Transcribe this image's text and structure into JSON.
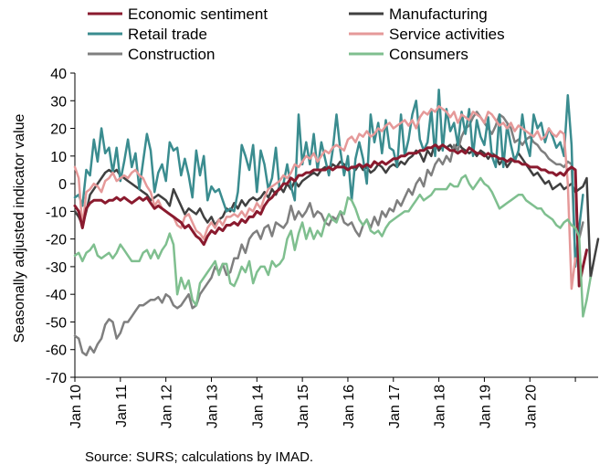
{
  "chart_data": {
    "type": "line",
    "ylabel": "Seasonally adjusted indicator value",
    "ylim": [
      -70,
      40
    ],
    "yticks": [
      40,
      30,
      20,
      10,
      0,
      -10,
      -20,
      -30,
      -40,
      -50,
      -60,
      -70
    ],
    "xticks": [
      "Jan 10",
      "Jan 11",
      "Jan 12",
      "Jan 13",
      "Jan 14",
      "Jan 15",
      "Jan 16",
      "Jan 17",
      "Jan 18",
      "Jan 19",
      "Jan 20"
    ],
    "x_start": "2010-01",
    "source": "Source: SURS; calculations by IMAD.",
    "grid": false,
    "legend": "top",
    "series": [
      {
        "name": "Manufacturing",
        "color": "#404040",
        "width": 2.5,
        "values": [
          -10,
          -12,
          -15,
          -10,
          -4,
          -2,
          0,
          2,
          4,
          5,
          4,
          5,
          3,
          2,
          1,
          0,
          -1,
          -2,
          -3,
          -4,
          -6,
          -5,
          -4,
          -5,
          -6,
          -8,
          -2,
          -5,
          -8,
          -11,
          -9,
          -10,
          -11,
          -9,
          -12,
          -14,
          -12,
          -15,
          -13,
          -12,
          -9,
          -10,
          -7,
          -9,
          -6,
          -8,
          -6,
          -5,
          -6,
          -5,
          -3,
          -5,
          -2,
          -4,
          -1,
          -3,
          0,
          -2,
          1,
          -1,
          1,
          2,
          3,
          4,
          3,
          5,
          6,
          5,
          7,
          6,
          8,
          7,
          5,
          6,
          5,
          7,
          5,
          6,
          4,
          5,
          7,
          6,
          4,
          6,
          7,
          6,
          8,
          7,
          9,
          10,
          12,
          11,
          8,
          12,
          10,
          15,
          12,
          14,
          13,
          14,
          12,
          15,
          13,
          12,
          11,
          12,
          10,
          12,
          11,
          9,
          11,
          10,
          7,
          9,
          6,
          8,
          9,
          11,
          9,
          7,
          5,
          3,
          4,
          2,
          0,
          1,
          -2,
          -1,
          0,
          -2,
          -1,
          0,
          -3,
          -2,
          -1,
          2,
          -34,
          -27,
          -20
        ]
      },
      {
        "name": "Construction",
        "color": "#7f7f7f",
        "width": 2.5,
        "values": [
          -55,
          -56,
          -61,
          -62,
          -59,
          -61,
          -58,
          -56,
          -51,
          -49,
          -50,
          -56,
          -54,
          -50,
          -50,
          -48,
          -46,
          -44,
          -44,
          -43,
          -42,
          -42,
          -41,
          -43,
          -40,
          -41,
          -44,
          -45,
          -44,
          -42,
          -40,
          -45,
          -44,
          -40,
          -38,
          -36,
          -34,
          -30,
          -32,
          -29,
          -33,
          -32,
          -27,
          -27,
          -22,
          -25,
          -20,
          -18,
          -17,
          -20,
          -16,
          -15,
          -19,
          -14,
          -15,
          -16,
          -14,
          -8,
          -13,
          -10,
          -12,
          -10,
          -7,
          -12,
          -10,
          -11,
          -14,
          -15,
          -12,
          -13,
          -10,
          -14,
          -15,
          -14,
          -17,
          -19,
          -15,
          -13,
          -16,
          -12,
          -15,
          -10,
          -12,
          -9,
          -10,
          -6,
          -8,
          -5,
          -2,
          -4,
          0,
          2,
          -1,
          5,
          3,
          7,
          9,
          7,
          10,
          8,
          14,
          12,
          17,
          20,
          21,
          24,
          26,
          24,
          22,
          20,
          18,
          21,
          25,
          24,
          22,
          20,
          15,
          16,
          14,
          16,
          17,
          15,
          14,
          12,
          11,
          9,
          8,
          7,
          7,
          6,
          8,
          7,
          -28,
          -20,
          -14
        ]
      },
      {
        "name": "Retail trade",
        "color": "#3a8c8f",
        "width": 2.5,
        "values": [
          -5,
          -4,
          -8,
          5,
          3,
          16,
          8,
          20,
          11,
          13,
          4,
          13,
          1,
          8,
          16,
          6,
          11,
          -2,
          8,
          18,
          12,
          -3,
          4,
          7,
          1,
          15,
          12,
          13,
          3,
          9,
          3,
          -5,
          12,
          3,
          10,
          -6,
          -1,
          -3,
          -2,
          -6,
          -10,
          -9,
          -10,
          -3,
          14,
          10,
          5,
          14,
          -3,
          12,
          7,
          -2,
          2,
          13,
          -2,
          0,
          7,
          -1,
          -6,
          25,
          7,
          15,
          7,
          18,
          5,
          15,
          9,
          3,
          12,
          25,
          12,
          3,
          10,
          -6,
          9,
          15,
          9,
          0,
          25,
          15,
          22,
          11,
          23,
          13,
          12,
          6,
          25,
          10,
          16,
          25,
          30,
          16,
          12,
          15,
          27,
          10,
          34,
          12,
          27,
          19,
          22,
          14,
          26,
          18,
          27,
          10,
          23,
          17,
          14,
          24,
          10,
          6,
          25,
          6,
          21,
          14,
          8,
          12,
          25,
          15,
          10,
          25,
          20,
          22,
          15,
          20,
          17,
          13,
          15,
          10,
          32,
          14,
          -30,
          -16,
          -4
        ]
      },
      {
        "name": "Service activities",
        "color": "#e59999",
        "width": 2.5,
        "values": [
          6,
          2,
          -16,
          -3,
          -2,
          0,
          -1,
          -3,
          1,
          2,
          4,
          1,
          2,
          3,
          2,
          4,
          5,
          3,
          2,
          -1,
          -3,
          -8,
          -6,
          -9,
          -10,
          -11,
          -12,
          -15,
          -16,
          -12,
          -11,
          -14,
          -17,
          -18,
          -20,
          -16,
          -14,
          -16,
          -13,
          -15,
          -12,
          -12,
          -11,
          -12,
          -10,
          -12,
          -9,
          -10,
          -7,
          -9,
          -5,
          -2,
          -1,
          0,
          1,
          3,
          2,
          4,
          7,
          6,
          8,
          10,
          9,
          11,
          8,
          10,
          12,
          11,
          13,
          14,
          13,
          12,
          16,
          17,
          15,
          18,
          17,
          19,
          17,
          18,
          20,
          19,
          21,
          22,
          20,
          21,
          22,
          23,
          21,
          23,
          20,
          24,
          26,
          25,
          27,
          26,
          28,
          27,
          26,
          24,
          26,
          22,
          25,
          24,
          23,
          26,
          25,
          24,
          22,
          26,
          25,
          23,
          21,
          22,
          20,
          22,
          19,
          21,
          20,
          19,
          18,
          17,
          19,
          16,
          17,
          20,
          18,
          17,
          19,
          18,
          0,
          -38,
          -27
        ]
      },
      {
        "name": "Economic sentiment",
        "color": "#8a1a2e",
        "width": 3,
        "values": [
          -8,
          -10,
          -16,
          -9,
          -7,
          -6,
          -6,
          -6,
          -7,
          -6,
          -6,
          -5,
          -6,
          -5,
          -6,
          -7,
          -6,
          -5,
          -6,
          -5,
          -7,
          -9,
          -8,
          -9,
          -10,
          -11,
          -12,
          -13,
          -14,
          -16,
          -15,
          -17,
          -19,
          -20,
          -22,
          -19,
          -17,
          -18,
          -16,
          -17,
          -15,
          -15,
          -14,
          -15,
          -13,
          -14,
          -12,
          -12,
          -10,
          -11,
          -8,
          -6,
          -5,
          -3,
          -2,
          0,
          0,
          2,
          1,
          3,
          3,
          4,
          4,
          5,
          5,
          5,
          5,
          6,
          5,
          6,
          6,
          6,
          5,
          6,
          6,
          7,
          6,
          7,
          6,
          8,
          7,
          8,
          7,
          8,
          9,
          9,
          10,
          10,
          11,
          11,
          11,
          12,
          12,
          13,
          13,
          14,
          13,
          14,
          13,
          12,
          12,
          11,
          12,
          11,
          13,
          12,
          11,
          11,
          10,
          11,
          10,
          10,
          9,
          9,
          8,
          9,
          8,
          8,
          7,
          7,
          6,
          6,
          6,
          5,
          5,
          4,
          4,
          3,
          4,
          3,
          5,
          6,
          5,
          -37,
          -30,
          -24
        ]
      },
      {
        "name": "Consumers",
        "color": "#7fbf8f",
        "width": 2.5,
        "values": [
          -26,
          -25,
          -28,
          -25,
          -24,
          -22,
          -26,
          -27,
          -26,
          -25,
          -27,
          -25,
          -22,
          -24,
          -26,
          -28,
          -28,
          -28,
          -25,
          -24,
          -27,
          -24,
          -27,
          -24,
          -22,
          -18,
          -22,
          -40,
          -34,
          -38,
          -35,
          -42,
          -44,
          -36,
          -34,
          -32,
          -30,
          -28,
          -33,
          -29,
          -29,
          -36,
          -37,
          -34,
          -30,
          -32,
          -28,
          -36,
          -32,
          -30,
          -30,
          -33,
          -28,
          -30,
          -29,
          -27,
          -20,
          -17,
          -24,
          -18,
          -14,
          -20,
          -16,
          -20,
          -17,
          -19,
          -14,
          -11,
          -13,
          -14,
          -10,
          -11,
          -5,
          -6,
          -9,
          -13,
          -15,
          -13,
          -17,
          -18,
          -17,
          -19,
          -16,
          -14,
          -13,
          -12,
          -11,
          -10,
          -10,
          -8,
          -6,
          -4,
          -6,
          -5,
          -4,
          -2,
          -2,
          -2,
          -2,
          0,
          -1,
          -1,
          2,
          3,
          0,
          -2,
          0,
          2,
          0,
          -1,
          -3,
          -6,
          -9,
          -8,
          -7,
          -6,
          -5,
          -4,
          -4,
          -6,
          -7,
          -8,
          -9,
          -9,
          -11,
          -12,
          -13,
          -15,
          -16,
          -14,
          -13,
          -15,
          -16,
          -19,
          -48,
          -42,
          -34
        ]
      }
    ],
    "legend_order": [
      "Economic sentiment",
      "Manufacturing",
      "Retail trade",
      "Service activities",
      "Construction",
      "Consumers"
    ]
  }
}
